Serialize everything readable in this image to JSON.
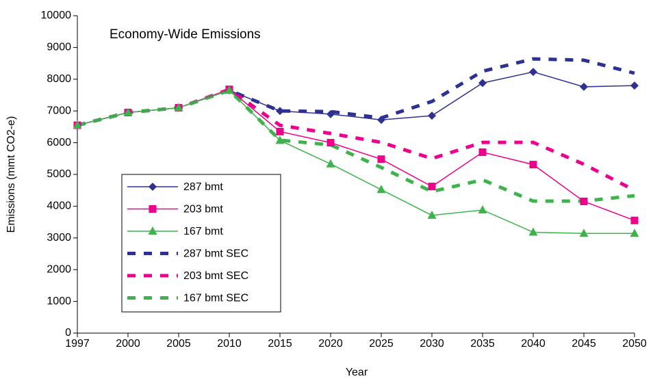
{
  "chart_data": {
    "type": "line",
    "title": "Economy-Wide Emissions",
    "x_label": "Year",
    "y_label": "Emissions (mmt CO2-e)",
    "categories": [
      "1997",
      "2000",
      "2005",
      "2010",
      "2015",
      "2020",
      "2025",
      "2030",
      "2035",
      "2040",
      "2045",
      "2050"
    ],
    "series": [
      {
        "name": "287 bmt",
        "color": "#2e3192",
        "marker": "diamond",
        "dashed": false,
        "values": [
          6550,
          6950,
          7100,
          7650,
          7000,
          6900,
          6720,
          6850,
          7880,
          8230,
          7760,
          7800
        ]
      },
      {
        "name": "203 bmt",
        "color": "#ec008c",
        "marker": "square",
        "dashed": false,
        "values": [
          6550,
          6950,
          7100,
          7680,
          6350,
          6000,
          5480,
          4620,
          5700,
          5310,
          4150,
          3550
        ]
      },
      {
        "name": "167 bmt",
        "color": "#3cb44b",
        "marker": "triangle",
        "dashed": false,
        "values": [
          6550,
          6950,
          7100,
          7650,
          6070,
          5330,
          4520,
          3710,
          3880,
          3180,
          3140,
          3140
        ]
      },
      {
        "name": "287 bmt SEC",
        "color": "#2e3192",
        "marker": "none",
        "dashed": true,
        "values": [
          6550,
          6950,
          7100,
          7650,
          7000,
          6980,
          6780,
          7300,
          8250,
          8640,
          8600,
          8190
        ]
      },
      {
        "name": "203 bmt SEC",
        "color": "#ec008c",
        "marker": "none",
        "dashed": true,
        "values": [
          6550,
          6950,
          7100,
          7680,
          6550,
          6290,
          6010,
          5500,
          6010,
          6010,
          5320,
          4500
        ]
      },
      {
        "name": "167 bmt SEC",
        "color": "#3cb44b",
        "marker": "none",
        "dashed": true,
        "values": [
          6550,
          6950,
          7100,
          7650,
          6080,
          5930,
          5220,
          4460,
          4830,
          4160,
          4160,
          4330
        ]
      }
    ],
    "ylim": [
      0,
      10000
    ],
    "yticks": [
      0,
      1000,
      2000,
      3000,
      4000,
      5000,
      6000,
      7000,
      8000,
      9000,
      10000
    ],
    "grid": false,
    "legend": "lower left"
  }
}
